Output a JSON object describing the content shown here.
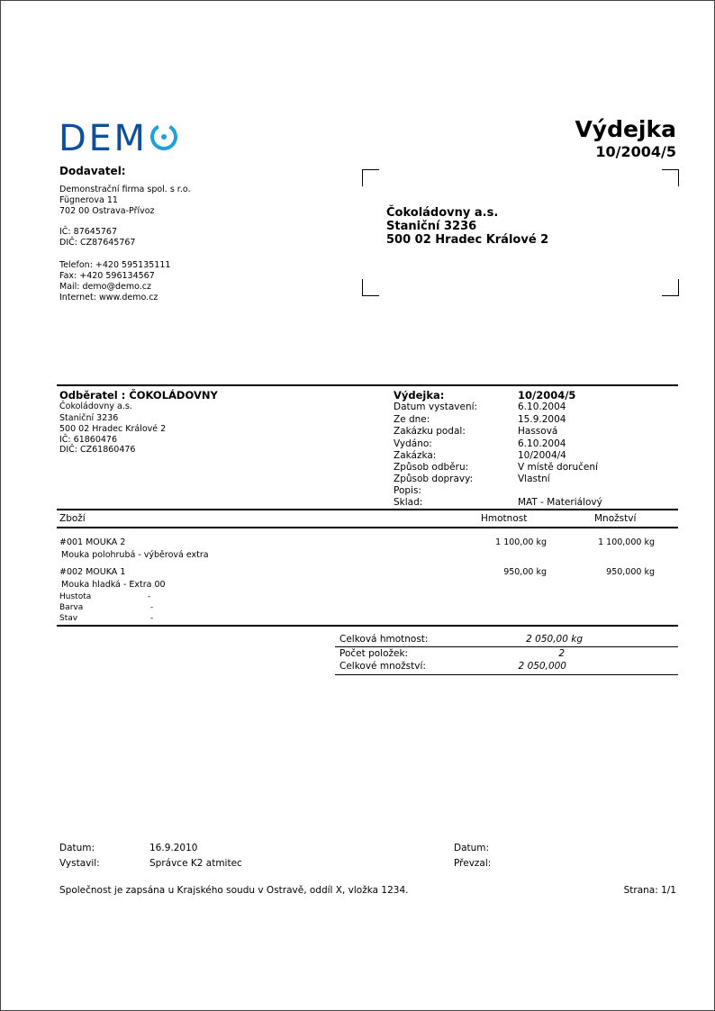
{
  "logo": {
    "text": "DEMO",
    "colors": {
      "letters": "#0b4f9f",
      "circle": "#1ea0db"
    }
  },
  "title": "Výdejka",
  "document_number": "10/2004/5",
  "supplier": {
    "heading": "Dodavatel:",
    "name": "Demonstrační firma spol. s r.o.",
    "street": "Fügnerova 11",
    "city": "702 00 Ostrava-Přívoz",
    "ic": "IČ: 87645767",
    "dic": "DIČ: CZ87645767",
    "phone": "Telefon: +420  595135111",
    "fax": "Fax: +420  596134567",
    "mail": "Mail: demo@demo.cz",
    "internet": "Internet: www.demo.cz"
  },
  "address_window": {
    "name": "Čokoládovny a.s.",
    "street": "Staniční 3236",
    "city": "500 02  Hradec Králové 2"
  },
  "customer": {
    "heading": "Odběratel : ČOKOLÁDOVNY",
    "lines": [
      "Čokoládovny a.s.",
      "Staniční 3236",
      "500 02  Hradec Králové 2",
      "IČ: 61860476",
      "DIČ: CZ61860476"
    ]
  },
  "details": {
    "heading_label": "Výdejka:",
    "heading_value": "10/2004/5",
    "rows": [
      {
        "label": "Datum vystavení:",
        "value": "6.10.2004"
      },
      {
        "label": "Ze dne:",
        "value": "15.9.2004"
      },
      {
        "label": "Zakázku podal:",
        "value": "Hassová"
      },
      {
        "label": "Vydáno:",
        "value": "6.10.2004"
      },
      {
        "label": "Zakázka:",
        "value": "10/2004/4"
      },
      {
        "label": "Způsob odběru:",
        "value": "V místě doručení"
      },
      {
        "label": "Způsob dopravy:",
        "value": "Vlastní"
      },
      {
        "label": "Popis:",
        "value": ""
      },
      {
        "label": "Sklad:",
        "value": "MAT - Materiálový"
      }
    ]
  },
  "table": {
    "headers": {
      "goods": "Zboží",
      "weight": "Hmotnost",
      "quantity": "Množství"
    },
    "items": [
      {
        "code": "#001 MOUKA 2",
        "description": "Mouka polohrubá - výběrová  extra",
        "weight": "1 100,00  kg",
        "quantity": "1 100,000  kg"
      },
      {
        "code": "#002 MOUKA 1",
        "description": "Mouka hladká - Extra 00",
        "weight": "950,00  kg",
        "quantity": "950,000  kg"
      }
    ],
    "attributes": [
      {
        "label": "Hustota",
        "value": "-"
      },
      {
        "label": "Barva",
        "value": "-"
      },
      {
        "label": "Stav",
        "value": "-"
      }
    ]
  },
  "totals": {
    "total_weight_label": "Celková hmotnost:",
    "total_weight": "2 050,00  kg",
    "item_count_label": "Počet položek:",
    "item_count": "2",
    "total_quantity_label": "Celkové množství:",
    "total_quantity": "2 050,000"
  },
  "footer": {
    "date_label": "Datum:",
    "date_value": "16.9.2010",
    "issued_label": "Vystavil:",
    "issued_value": "Správce K2 atmitec",
    "date2_label": "Datum:",
    "received_label": "Převzal:",
    "registry": "Společnost je zapsána u Krajského soudu v Ostravě, oddíl X, vložka 1234.",
    "page": "Strana: 1/1"
  }
}
